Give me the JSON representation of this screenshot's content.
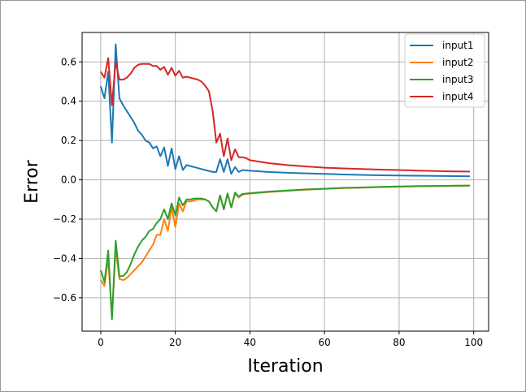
{
  "chart_data": {
    "type": "line",
    "title": "",
    "xlabel": "Iteration",
    "ylabel": "Error",
    "xlim": [
      -5,
      104
    ],
    "ylim": [
      -0.77,
      0.75
    ],
    "xticks": [
      0,
      20,
      40,
      60,
      80,
      100
    ],
    "xtick_labels": [
      "0",
      "20",
      "40",
      "60",
      "80",
      "100"
    ],
    "yticks": [
      -0.6,
      -0.4,
      -0.2,
      0.0,
      0.2,
      0.4,
      0.6
    ],
    "ytick_labels": [
      "−0.6",
      "−0.4",
      "−0.2",
      "0.0",
      "0.2",
      "0.4",
      "0.6"
    ],
    "grid": true,
    "legend_position": "top-right",
    "x": [
      0,
      1,
      2,
      3,
      4,
      5,
      6,
      7,
      8,
      9,
      10,
      11,
      12,
      13,
      14,
      15,
      16,
      17,
      18,
      19,
      20,
      21,
      22,
      23,
      24,
      25,
      26,
      27,
      28,
      29,
      30,
      31,
      32,
      33,
      34,
      35,
      36,
      37,
      38,
      39,
      40,
      45,
      50,
      55,
      60,
      65,
      70,
      75,
      80,
      85,
      90,
      95,
      99
    ],
    "series": [
      {
        "name": "input1",
        "color": "#1f77b4",
        "values": [
          0.476,
          0.415,
          0.55,
          0.19,
          0.69,
          0.415,
          0.38,
          0.35,
          0.32,
          0.29,
          0.25,
          0.23,
          0.2,
          0.19,
          0.16,
          0.17,
          0.12,
          0.165,
          0.07,
          0.16,
          0.055,
          0.12,
          0.05,
          0.075,
          0.07,
          0.065,
          0.06,
          0.055,
          0.05,
          0.045,
          0.04,
          0.04,
          0.105,
          0.04,
          0.105,
          0.03,
          0.065,
          0.04,
          0.05,
          0.048,
          0.046,
          0.04,
          0.036,
          0.033,
          0.03,
          0.027,
          0.025,
          0.023,
          0.022,
          0.021,
          0.02,
          0.019,
          0.018
        ]
      },
      {
        "name": "input2",
        "color": "#ff7f0e",
        "values": [
          -0.51,
          -0.54,
          -0.4,
          -0.7,
          -0.35,
          -0.505,
          -0.51,
          -0.5,
          -0.48,
          -0.46,
          -0.44,
          -0.42,
          -0.39,
          -0.36,
          -0.33,
          -0.28,
          -0.28,
          -0.2,
          -0.26,
          -0.14,
          -0.24,
          -0.12,
          -0.16,
          -0.11,
          -0.11,
          -0.105,
          -0.1,
          -0.1,
          -0.1,
          -0.11,
          -0.14,
          -0.16,
          -0.08,
          -0.15,
          -0.07,
          -0.14,
          -0.07,
          -0.09,
          -0.075,
          -0.072,
          -0.07,
          -0.062,
          -0.056,
          -0.05,
          -0.046,
          -0.042,
          -0.04,
          -0.037,
          -0.035,
          -0.033,
          -0.032,
          -0.031,
          -0.03
        ]
      },
      {
        "name": "input3",
        "color": "#2ca02c",
        "values": [
          -0.46,
          -0.52,
          -0.36,
          -0.71,
          -0.31,
          -0.49,
          -0.49,
          -0.47,
          -0.43,
          -0.38,
          -0.34,
          -0.31,
          -0.29,
          -0.26,
          -0.25,
          -0.22,
          -0.2,
          -0.15,
          -0.2,
          -0.12,
          -0.18,
          -0.09,
          -0.13,
          -0.1,
          -0.1,
          -0.095,
          -0.095,
          -0.095,
          -0.1,
          -0.11,
          -0.14,
          -0.16,
          -0.08,
          -0.15,
          -0.07,
          -0.14,
          -0.065,
          -0.085,
          -0.072,
          -0.07,
          -0.068,
          -0.06,
          -0.054,
          -0.049,
          -0.045,
          -0.041,
          -0.039,
          -0.036,
          -0.034,
          -0.032,
          -0.031,
          -0.03,
          -0.029
        ]
      },
      {
        "name": "input4",
        "color": "#d62728",
        "values": [
          0.55,
          0.52,
          0.62,
          0.38,
          0.6,
          0.51,
          0.51,
          0.52,
          0.54,
          0.57,
          0.585,
          0.59,
          0.59,
          0.59,
          0.58,
          0.58,
          0.56,
          0.575,
          0.535,
          0.57,
          0.53,
          0.555,
          0.52,
          0.525,
          0.52,
          0.515,
          0.51,
          0.5,
          0.48,
          0.45,
          0.35,
          0.19,
          0.235,
          0.12,
          0.21,
          0.1,
          0.155,
          0.115,
          0.115,
          0.11,
          0.1,
          0.085,
          0.075,
          0.068,
          0.062,
          0.058,
          0.055,
          0.052,
          0.05,
          0.047,
          0.045,
          0.043,
          0.042
        ]
      }
    ]
  }
}
